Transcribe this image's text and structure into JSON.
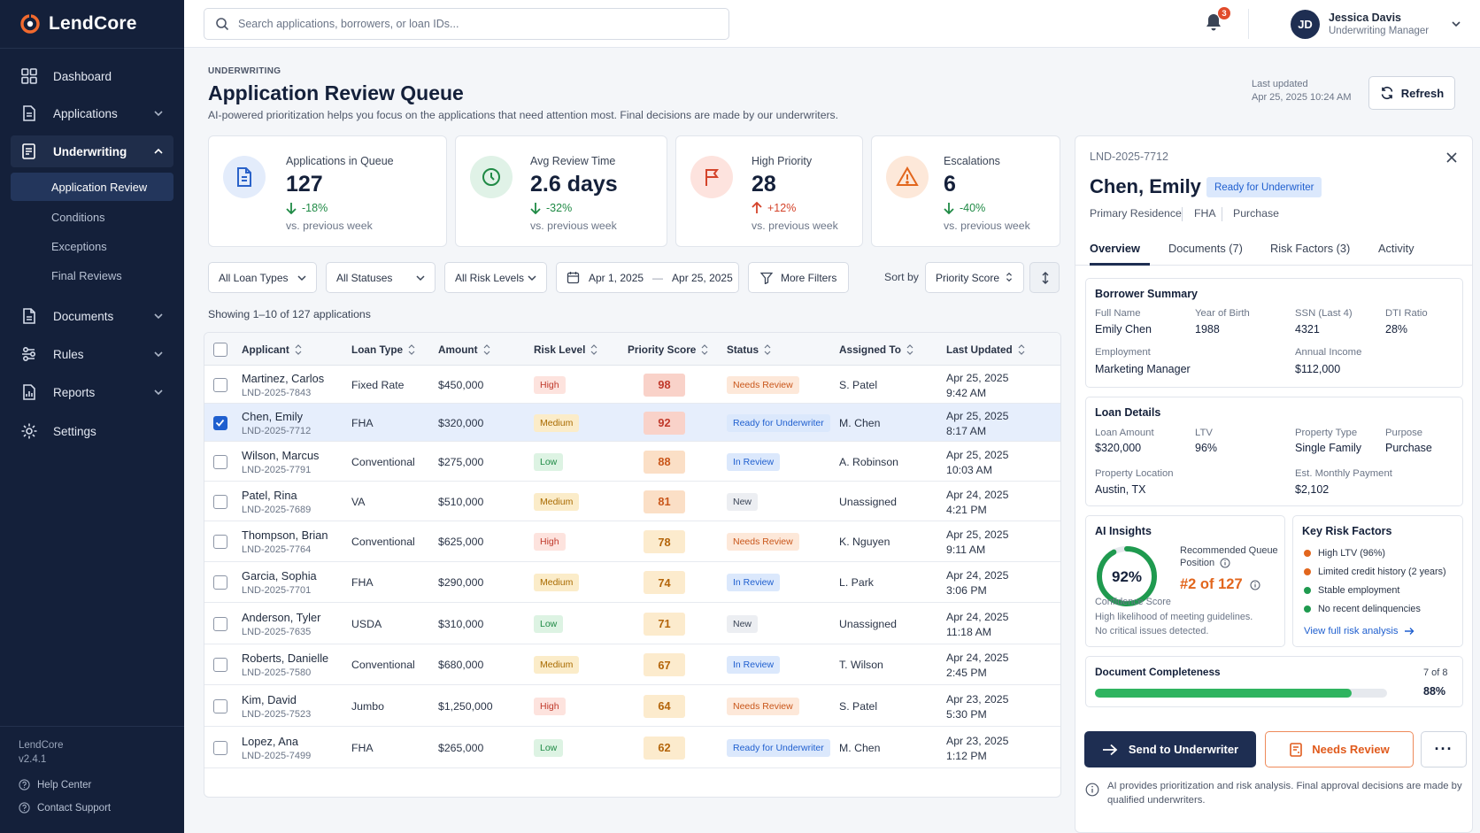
{
  "brand": {
    "name": "LendCore"
  },
  "sidebar": {
    "nav": [
      {
        "label": "Dashboard"
      },
      {
        "label": "Applications"
      },
      {
        "label": "Underwriting"
      },
      {
        "label": "Documents"
      },
      {
        "label": "Rules"
      },
      {
        "label": "Reports"
      },
      {
        "label": "Settings"
      }
    ],
    "sub": [
      {
        "label": "Application Review"
      },
      {
        "label": "Conditions"
      },
      {
        "label": "Exceptions"
      },
      {
        "label": "Final Reviews"
      }
    ],
    "footer": {
      "app": "LendCore",
      "version": "v2.4.1",
      "help": "Help Center",
      "support": "Contact Support"
    }
  },
  "topbar": {
    "search_placeholder": "Search applications, borrowers, or loan IDs...",
    "notifications": "3",
    "user": {
      "initials": "JD",
      "name": "Jessica Davis",
      "role": "Underwriting Manager"
    }
  },
  "header": {
    "eyebrow": "UNDERWRITING",
    "title": "Application Review Queue",
    "subtitle": "AI-powered prioritization helps you focus on the applications that need attention most. Final decisions are made by our underwriters.",
    "updated_label": "Last updated",
    "updated_value": "Apr 25, 2025 10:24 AM",
    "refresh": "Refresh"
  },
  "stats": [
    {
      "label": "Applications in Queue",
      "value": "127",
      "delta": "-18%",
      "prev": "vs. previous week",
      "color": "#2a62c9"
    },
    {
      "label": "Avg Review Time",
      "value": "2.6 days",
      "delta": "-32%",
      "prev": "vs. previous week",
      "color": "#1f8a45"
    },
    {
      "label": "High Priority",
      "value": "28",
      "delta": "+12%",
      "prev": "vs. previous week",
      "color": "#d4432a"
    },
    {
      "label": "Escalations",
      "value": "6",
      "delta": "-40%",
      "prev": "vs. previous week",
      "color": "#e2661d"
    }
  ],
  "filters": {
    "loan_types": "All Loan Types",
    "statuses": "All Statuses",
    "risk_levels": "All Risk Levels",
    "date_from": "Apr 1, 2025",
    "date_sep": "—",
    "date_to": "Apr 25, 2025",
    "more": "More Filters",
    "sort_label": "Sort by",
    "sort_value": "Priority Score"
  },
  "showing": "Showing 1–10 of 127 applications",
  "table": {
    "columns": [
      "Applicant",
      "Loan Type",
      "Amount",
      "Risk Level",
      "Priority Score",
      "Status",
      "Assigned To",
      "Last Updated"
    ],
    "rows": [
      {
        "name": "Martinez, Carlos",
        "id": "LND-2025-7843",
        "type": "Fixed Rate",
        "amount": "$450,000",
        "risk": "High",
        "score": "98",
        "status": "Needs Review",
        "assigned": "S. Patel",
        "date": "Apr 25, 2025",
        "time": "9:42 AM"
      },
      {
        "name": "Chen, Emily",
        "id": "LND-2025-7712",
        "type": "FHA",
        "amount": "$320,000",
        "risk": "Medium",
        "score": "92",
        "status": "Ready for Underwriter",
        "assigned": "M. Chen",
        "date": "Apr 25, 2025",
        "time": "8:17 AM"
      },
      {
        "name": "Wilson, Marcus",
        "id": "LND-2025-7791",
        "type": "Conventional",
        "amount": "$275,000",
        "risk": "Low",
        "score": "88",
        "status": "In Review",
        "assigned": "A. Robinson",
        "date": "Apr 25, 2025",
        "time": "10:03 AM"
      },
      {
        "name": "Patel, Rina",
        "id": "LND-2025-7689",
        "type": "VA",
        "amount": "$510,000",
        "risk": "Medium",
        "score": "81",
        "status": "New",
        "assigned": "Unassigned",
        "date": "Apr 24, 2025",
        "time": "4:21 PM"
      },
      {
        "name": "Thompson, Brian",
        "id": "LND-2025-7764",
        "type": "Conventional",
        "amount": "$625,000",
        "risk": "High",
        "score": "78",
        "status": "Needs Review",
        "assigned": "K. Nguyen",
        "date": "Apr 25, 2025",
        "time": "9:11 AM"
      },
      {
        "name": "Garcia, Sophia",
        "id": "LND-2025-7701",
        "type": "FHA",
        "amount": "$290,000",
        "risk": "Medium",
        "score": "74",
        "status": "In Review",
        "assigned": "L. Park",
        "date": "Apr 24, 2025",
        "time": "3:06 PM"
      },
      {
        "name": "Anderson, Tyler",
        "id": "LND-2025-7635",
        "type": "USDA",
        "amount": "$310,000",
        "risk": "Low",
        "score": "71",
        "status": "New",
        "assigned": "Unassigned",
        "date": "Apr 24, 2025",
        "time": "11:18 AM"
      },
      {
        "name": "Roberts, Danielle",
        "id": "LND-2025-7580",
        "type": "Conventional",
        "amount": "$680,000",
        "risk": "Medium",
        "score": "67",
        "status": "In Review",
        "assigned": "T. Wilson",
        "date": "Apr 24, 2025",
        "time": "2:45 PM"
      },
      {
        "name": "Kim, David",
        "id": "LND-2025-7523",
        "type": "Jumbo",
        "amount": "$1,250,000",
        "risk": "High",
        "score": "64",
        "status": "Needs Review",
        "assigned": "S. Patel",
        "date": "Apr 23, 2025",
        "time": "5:30 PM"
      },
      {
        "name": "Lopez, Ana",
        "id": "LND-2025-7499",
        "type": "FHA",
        "amount": "$265,000",
        "risk": "Low",
        "score": "62",
        "status": "Ready for Underwriter",
        "assigned": "M. Chen",
        "date": "Apr 23, 2025",
        "time": "1:12 PM"
      }
    ]
  },
  "panel": {
    "id": "LND-2025-7712",
    "name": "Chen, Emily",
    "badge": "Ready for Underwriter",
    "meta": [
      "Primary Residence",
      "FHA",
      "Purchase"
    ],
    "tabs": [
      "Overview",
      "Documents (7)",
      "Risk Factors (3)",
      "Activity"
    ],
    "borrower": {
      "title": "Borrower Summary",
      "full_name_label": "Full Name",
      "full_name": "Emily Chen",
      "yob_label": "Year of Birth",
      "yob": "1988",
      "ssn_label": "SSN (Last 4)",
      "ssn": "4321",
      "dti_label": "DTI Ratio",
      "dti": "28%",
      "employment_label": "Employment",
      "employment": "Marketing Manager",
      "income_label": "Annual Income",
      "income": "$112,000"
    },
    "loan": {
      "title": "Loan Details",
      "amount_label": "Loan Amount",
      "amount": "$320,000",
      "ltv_label": "LTV",
      "ltv": "96%",
      "ptype_label": "Property Type",
      "ptype": "Single Family",
      "purpose_label": "Purpose",
      "purpose": "Purchase",
      "location_label": "Property Location",
      "location": "Austin, TX",
      "payment_label": "Est. Monthly Payment",
      "payment": "$2,102"
    },
    "insights": {
      "title": "AI Insights",
      "confidence": "92%",
      "confidence_fraction": 0.92,
      "confidence_label": "Confidence Score",
      "queue_label_1": "Recommended Queue",
      "queue_label_2": "Position",
      "queue_value": "#2 of 127",
      "note_1": "High likelihood of meeting guidelines.",
      "note_2": "No critical issues detected."
    },
    "risks": {
      "title": "Key Risk Factors",
      "items": [
        {
          "label": "High LTV (96%)",
          "color": "#e2661d"
        },
        {
          "label": "Limited credit history (2 years)",
          "color": "#e2661d"
        },
        {
          "label": "Stable employment",
          "color": "#1f9a4f"
        },
        {
          "label": "No recent delinquencies",
          "color": "#1f9a4f"
        }
      ],
      "link": "View full risk analysis"
    },
    "completeness": {
      "title": "Document Completeness",
      "count": "7 of 8",
      "percent": "88%",
      "fraction": 0.88
    },
    "actions": {
      "send": "Send to Underwriter",
      "review": "Needs Review",
      "more": "···"
    },
    "disclaimer": "AI provides prioritization and risk analysis. Final approval decisions are made by qualified underwriters."
  }
}
